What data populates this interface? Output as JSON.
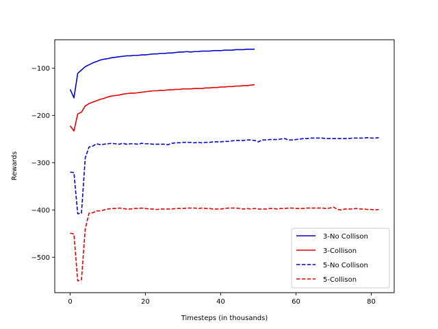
{
  "chart_data": {
    "type": "line",
    "title": "",
    "xlabel": "Timesteps (in thousands)",
    "ylabel": "Rewards",
    "xlim": [
      -4.1,
      86.1
    ],
    "ylim": [
      -575,
      -40
    ],
    "xticks": [
      0,
      20,
      40,
      60,
      80
    ],
    "yticks": [
      -500,
      -400,
      -300,
      -200,
      -100
    ],
    "grid": false,
    "legend_position": "lower-right",
    "series": [
      {
        "name": "3-No Collison",
        "color": "#0000cc",
        "linestyle": "solid",
        "x": [
          0,
          1,
          2,
          3,
          4,
          5,
          6,
          7,
          8,
          9,
          10,
          11,
          12,
          13,
          14,
          15,
          16,
          17,
          18,
          19,
          20,
          21,
          22,
          23,
          24,
          25,
          26,
          27,
          28,
          29,
          30,
          31,
          32,
          33,
          34,
          35,
          36,
          37,
          38,
          39,
          40,
          41,
          42,
          43,
          44,
          45,
          46,
          47,
          48,
          49
        ],
        "y": [
          -145,
          -163,
          -111,
          -104,
          -97,
          -93,
          -89,
          -86,
          -83,
          -81,
          -80,
          -78,
          -77,
          -76,
          -75,
          -74,
          -74,
          -73,
          -73,
          -72,
          -72,
          -71,
          -70,
          -70,
          -69,
          -69,
          -68,
          -68,
          -67,
          -66,
          -66,
          -65,
          -66,
          -65,
          -65,
          -64,
          -64,
          -64,
          -63,
          -63,
          -63,
          -62,
          -62,
          -62,
          -61,
          -61,
          -61,
          -60,
          -60,
          -60
        ]
      },
      {
        "name": "3-Collison",
        "color": "#e00000",
        "linestyle": "solid",
        "x": [
          0,
          1,
          2,
          3,
          4,
          5,
          6,
          7,
          8,
          9,
          10,
          11,
          12,
          13,
          14,
          15,
          16,
          17,
          18,
          19,
          20,
          21,
          22,
          23,
          24,
          25,
          26,
          27,
          28,
          29,
          30,
          31,
          32,
          33,
          34,
          35,
          36,
          37,
          38,
          39,
          40,
          41,
          42,
          43,
          44,
          45,
          46,
          47,
          48,
          49
        ],
        "y": [
          -222,
          -233,
          -197,
          -193,
          -180,
          -175,
          -172,
          -169,
          -166,
          -164,
          -161,
          -159,
          -158,
          -157,
          -155,
          -154,
          -153,
          -153,
          -152,
          -151,
          -150,
          -149,
          -148,
          -148,
          -147,
          -147,
          -146,
          -146,
          -145,
          -145,
          -144,
          -144,
          -144,
          -143,
          -143,
          -143,
          -142,
          -142,
          -141,
          -141,
          -140,
          -140,
          -139,
          -139,
          -138,
          -138,
          -137,
          -137,
          -136,
          -135
        ]
      },
      {
        "name": "5-No Collison",
        "color": "#0000cc",
        "linestyle": "dashed",
        "x": [
          0,
          1,
          2,
          3,
          4,
          5,
          6,
          7,
          8,
          9,
          10,
          11,
          12,
          13,
          14,
          15,
          16,
          17,
          18,
          19,
          20,
          21,
          22,
          23,
          24,
          25,
          26,
          27,
          28,
          29,
          30,
          31,
          32,
          33,
          34,
          35,
          36,
          37,
          38,
          39,
          40,
          41,
          42,
          43,
          44,
          45,
          46,
          47,
          48,
          49,
          50,
          51,
          52,
          53,
          54,
          55,
          56,
          57,
          58,
          59,
          60,
          61,
          62,
          63,
          64,
          65,
          66,
          67,
          68,
          69,
          70,
          71,
          72,
          73,
          74,
          75,
          76,
          77,
          78,
          79,
          80,
          81,
          82
        ],
        "y": [
          -320,
          -321,
          -408,
          -407,
          -290,
          -267,
          -265,
          -260,
          -262,
          -261,
          -260,
          -259,
          -260,
          -261,
          -259,
          -261,
          -260,
          -260,
          -261,
          -259,
          -260,
          -260,
          -261,
          -261,
          -261,
          -261,
          -262,
          -259,
          -258,
          -258,
          -257,
          -257,
          -257,
          -258,
          -257,
          -258,
          -257,
          -257,
          -256,
          -256,
          -256,
          -255,
          -255,
          -254,
          -253,
          -253,
          -253,
          -252,
          -252,
          -253,
          -256,
          -252,
          -252,
          -251,
          -251,
          -251,
          -250,
          -249,
          -252,
          -252,
          -251,
          -250,
          -249,
          -249,
          -248,
          -248,
          -248,
          -248,
          -249,
          -249,
          -249,
          -249,
          -249,
          -249,
          -249,
          -248,
          -248,
          -248,
          -248,
          -247,
          -248,
          -248,
          -247
        ]
      },
      {
        "name": "5-Collison",
        "color": "#e00000",
        "linestyle": "dashed",
        "x": [
          0,
          1,
          2,
          3,
          4,
          5,
          6,
          7,
          8,
          9,
          10,
          11,
          12,
          13,
          14,
          15,
          16,
          17,
          18,
          19,
          20,
          21,
          22,
          23,
          24,
          25,
          26,
          27,
          28,
          29,
          30,
          31,
          32,
          33,
          34,
          35,
          36,
          37,
          38,
          39,
          40,
          41,
          42,
          43,
          44,
          45,
          46,
          47,
          48,
          49,
          50,
          51,
          52,
          53,
          54,
          55,
          56,
          57,
          58,
          59,
          60,
          61,
          62,
          63,
          64,
          65,
          66,
          67,
          68,
          69,
          70,
          71,
          72,
          73,
          74,
          75,
          76,
          77,
          78,
          79,
          80,
          81,
          82
        ],
        "y": [
          -449,
          -451,
          -550,
          -548,
          -440,
          -407,
          -406,
          -402,
          -402,
          -400,
          -398,
          -397,
          -397,
          -396,
          -397,
          -398,
          -398,
          -397,
          -397,
          -396,
          -397,
          -398,
          -398,
          -399,
          -398,
          -398,
          -398,
          -398,
          -397,
          -397,
          -397,
          -396,
          -396,
          -396,
          -397,
          -396,
          -397,
          -397,
          -398,
          -398,
          -398,
          -397,
          -396,
          -396,
          -396,
          -397,
          -398,
          -397,
          -398,
          -397,
          -398,
          -398,
          -398,
          -397,
          -397,
          -398,
          -397,
          -397,
          -396,
          -396,
          -397,
          -397,
          -397,
          -396,
          -396,
          -396,
          -396,
          -396,
          -397,
          -396,
          -394,
          -399,
          -400,
          -398,
          -398,
          -398,
          -397,
          -398,
          -398,
          -399,
          -399,
          -400,
          -399
        ]
      }
    ]
  }
}
